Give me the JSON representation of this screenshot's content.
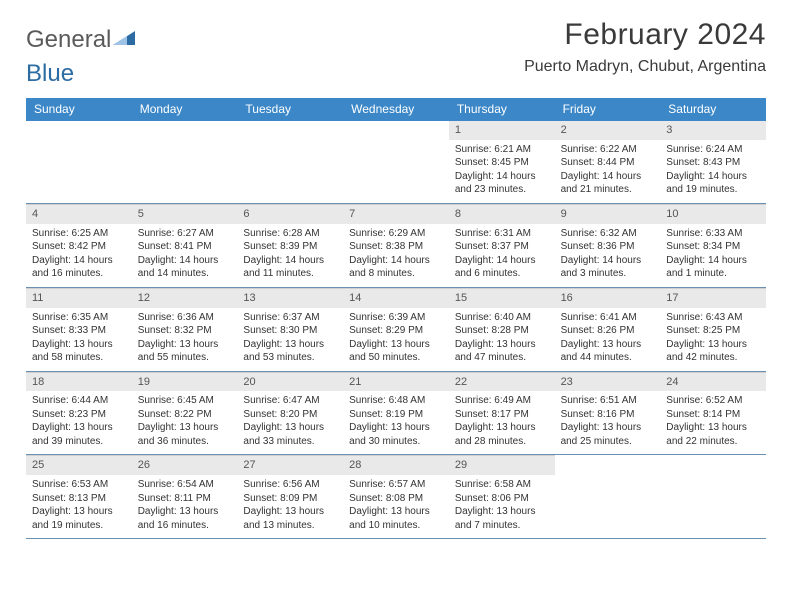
{
  "brand": {
    "part1": "General",
    "part2": "Blue"
  },
  "title": "February 2024",
  "location": "Puerto Madryn, Chubut, Argentina",
  "colors": {
    "header_bg": "#3b87c8",
    "header_text": "#ffffff",
    "daynum_bg": "#e9e9e9",
    "rule": "#6a8fb0",
    "brand_gray": "#5a5a5a",
    "brand_blue": "#2d6ca2"
  },
  "day_names": [
    "Sunday",
    "Monday",
    "Tuesday",
    "Wednesday",
    "Thursday",
    "Friday",
    "Saturday"
  ],
  "weeks": [
    [
      {
        "n": "",
        "lines": []
      },
      {
        "n": "",
        "lines": []
      },
      {
        "n": "",
        "lines": []
      },
      {
        "n": "",
        "lines": []
      },
      {
        "n": "1",
        "lines": [
          "Sunrise: 6:21 AM",
          "Sunset: 8:45 PM",
          "Daylight: 14 hours and 23 minutes."
        ]
      },
      {
        "n": "2",
        "lines": [
          "Sunrise: 6:22 AM",
          "Sunset: 8:44 PM",
          "Daylight: 14 hours and 21 minutes."
        ]
      },
      {
        "n": "3",
        "lines": [
          "Sunrise: 6:24 AM",
          "Sunset: 8:43 PM",
          "Daylight: 14 hours and 19 minutes."
        ]
      }
    ],
    [
      {
        "n": "4",
        "lines": [
          "Sunrise: 6:25 AM",
          "Sunset: 8:42 PM",
          "Daylight: 14 hours and 16 minutes."
        ]
      },
      {
        "n": "5",
        "lines": [
          "Sunrise: 6:27 AM",
          "Sunset: 8:41 PM",
          "Daylight: 14 hours and 14 minutes."
        ]
      },
      {
        "n": "6",
        "lines": [
          "Sunrise: 6:28 AM",
          "Sunset: 8:39 PM",
          "Daylight: 14 hours and 11 minutes."
        ]
      },
      {
        "n": "7",
        "lines": [
          "Sunrise: 6:29 AM",
          "Sunset: 8:38 PM",
          "Daylight: 14 hours and 8 minutes."
        ]
      },
      {
        "n": "8",
        "lines": [
          "Sunrise: 6:31 AM",
          "Sunset: 8:37 PM",
          "Daylight: 14 hours and 6 minutes."
        ]
      },
      {
        "n": "9",
        "lines": [
          "Sunrise: 6:32 AM",
          "Sunset: 8:36 PM",
          "Daylight: 14 hours and 3 minutes."
        ]
      },
      {
        "n": "10",
        "lines": [
          "Sunrise: 6:33 AM",
          "Sunset: 8:34 PM",
          "Daylight: 14 hours and 1 minute."
        ]
      }
    ],
    [
      {
        "n": "11",
        "lines": [
          "Sunrise: 6:35 AM",
          "Sunset: 8:33 PM",
          "Daylight: 13 hours and 58 minutes."
        ]
      },
      {
        "n": "12",
        "lines": [
          "Sunrise: 6:36 AM",
          "Sunset: 8:32 PM",
          "Daylight: 13 hours and 55 minutes."
        ]
      },
      {
        "n": "13",
        "lines": [
          "Sunrise: 6:37 AM",
          "Sunset: 8:30 PM",
          "Daylight: 13 hours and 53 minutes."
        ]
      },
      {
        "n": "14",
        "lines": [
          "Sunrise: 6:39 AM",
          "Sunset: 8:29 PM",
          "Daylight: 13 hours and 50 minutes."
        ]
      },
      {
        "n": "15",
        "lines": [
          "Sunrise: 6:40 AM",
          "Sunset: 8:28 PM",
          "Daylight: 13 hours and 47 minutes."
        ]
      },
      {
        "n": "16",
        "lines": [
          "Sunrise: 6:41 AM",
          "Sunset: 8:26 PM",
          "Daylight: 13 hours and 44 minutes."
        ]
      },
      {
        "n": "17",
        "lines": [
          "Sunrise: 6:43 AM",
          "Sunset: 8:25 PM",
          "Daylight: 13 hours and 42 minutes."
        ]
      }
    ],
    [
      {
        "n": "18",
        "lines": [
          "Sunrise: 6:44 AM",
          "Sunset: 8:23 PM",
          "Daylight: 13 hours and 39 minutes."
        ]
      },
      {
        "n": "19",
        "lines": [
          "Sunrise: 6:45 AM",
          "Sunset: 8:22 PM",
          "Daylight: 13 hours and 36 minutes."
        ]
      },
      {
        "n": "20",
        "lines": [
          "Sunrise: 6:47 AM",
          "Sunset: 8:20 PM",
          "Daylight: 13 hours and 33 minutes."
        ]
      },
      {
        "n": "21",
        "lines": [
          "Sunrise: 6:48 AM",
          "Sunset: 8:19 PM",
          "Daylight: 13 hours and 30 minutes."
        ]
      },
      {
        "n": "22",
        "lines": [
          "Sunrise: 6:49 AM",
          "Sunset: 8:17 PM",
          "Daylight: 13 hours and 28 minutes."
        ]
      },
      {
        "n": "23",
        "lines": [
          "Sunrise: 6:51 AM",
          "Sunset: 8:16 PM",
          "Daylight: 13 hours and 25 minutes."
        ]
      },
      {
        "n": "24",
        "lines": [
          "Sunrise: 6:52 AM",
          "Sunset: 8:14 PM",
          "Daylight: 13 hours and 22 minutes."
        ]
      }
    ],
    [
      {
        "n": "25",
        "lines": [
          "Sunrise: 6:53 AM",
          "Sunset: 8:13 PM",
          "Daylight: 13 hours and 19 minutes."
        ]
      },
      {
        "n": "26",
        "lines": [
          "Sunrise: 6:54 AM",
          "Sunset: 8:11 PM",
          "Daylight: 13 hours and 16 minutes."
        ]
      },
      {
        "n": "27",
        "lines": [
          "Sunrise: 6:56 AM",
          "Sunset: 8:09 PM",
          "Daylight: 13 hours and 13 minutes."
        ]
      },
      {
        "n": "28",
        "lines": [
          "Sunrise: 6:57 AM",
          "Sunset: 8:08 PM",
          "Daylight: 13 hours and 10 minutes."
        ]
      },
      {
        "n": "29",
        "lines": [
          "Sunrise: 6:58 AM",
          "Sunset: 8:06 PM",
          "Daylight: 13 hours and 7 minutes."
        ]
      },
      {
        "n": "",
        "lines": []
      },
      {
        "n": "",
        "lines": []
      }
    ]
  ]
}
